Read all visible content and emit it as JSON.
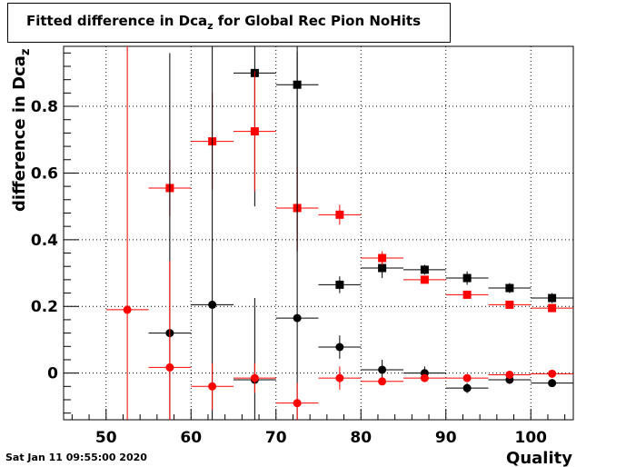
{
  "chart_data": {
    "type": "scatter",
    "title": "Fitted difference in Dca",
    "title_sub": "z",
    "title_rest": " for Global Rec Pion NoHits",
    "xlabel": "Quality",
    "ylabel": "difference in Dca",
    "ylabel_sub": "z",
    "xlim": [
      45,
      105
    ],
    "ylim": [
      -0.14,
      0.98
    ],
    "xticks": [
      50,
      60,
      70,
      80,
      90,
      100
    ],
    "yticks": [
      0,
      0.2,
      0.4,
      0.6,
      0.8
    ],
    "grid": true,
    "series": [
      {
        "color": "#000000",
        "marker": "square",
        "x": [
          67.5,
          72.5,
          77.5,
          82.5,
          87.5,
          92.5,
          97.5,
          102.5
        ],
        "y": [
          0.9,
          0.865,
          0.265,
          0.315,
          0.31,
          0.285,
          0.255,
          0.225
        ],
        "yerr": [
          0.4,
          0.5,
          0.025,
          0.03,
          0.015,
          0.02,
          0.015,
          0.015
        ]
      },
      {
        "color": "#ff0000",
        "marker": "square",
        "x": [
          57.5,
          62.5,
          67.5,
          72.5,
          77.5,
          82.5,
          87.5,
          92.5,
          97.5,
          102.5
        ],
        "y": [
          0.555,
          0.695,
          0.725,
          0.495,
          0.475,
          0.345,
          0.28,
          0.235,
          0.205,
          0.195
        ],
        "yerr": [
          0.085,
          0.145,
          0.18,
          0.125,
          0.03,
          0.02,
          0.01,
          0.01,
          0.008,
          0.008
        ]
      },
      {
        "color": "#000000",
        "marker": "circle",
        "x": [
          57.5,
          62.5,
          67.5,
          72.5,
          77.5,
          82.5,
          87.5,
          92.5,
          97.5,
          102.5
        ],
        "y": [
          0.12,
          0.205,
          -0.02,
          0.165,
          0.078,
          0.01,
          0.0,
          -0.045,
          -0.02,
          -0.03
        ],
        "yerr": [
          0.84,
          0.8,
          0.245,
          0.8,
          0.035,
          0.03,
          0.02,
          0.015,
          0.012,
          0.01
        ]
      },
      {
        "color": "#ff0000",
        "marker": "circle",
        "x": [
          52.5,
          57.5,
          62.5,
          67.5,
          72.5,
          77.5,
          82.5,
          87.5,
          92.5,
          97.5,
          102.5
        ],
        "y": [
          0.19,
          0.017,
          -0.04,
          -0.015,
          -0.09,
          -0.015,
          -0.025,
          -0.015,
          -0.015,
          -0.005,
          -0.002
        ],
        "yerr": [
          0.82,
          0.32,
          0.07,
          0.045,
          0.06,
          0.035,
          0.01,
          0.008,
          0.008,
          0.006,
          0.006
        ]
      }
    ]
  },
  "footer": {
    "timestamp": "Sat Jan 11 09:55:00 2020"
  }
}
